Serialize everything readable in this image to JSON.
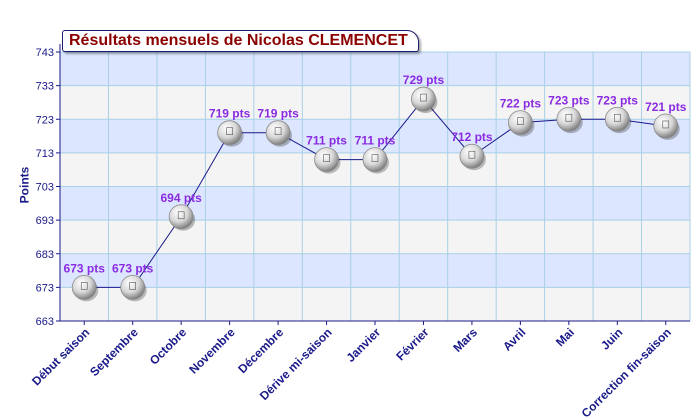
{
  "chart_data": {
    "type": "line",
    "title": "Résultats mensuels de Nicolas CLEMENCET",
    "xlabel": "",
    "ylabel": "Points",
    "categories": [
      "Début saison",
      "Septembre",
      "Octobre",
      "Novembre",
      "Décembre",
      "Dérive mi-saison",
      "Janvier",
      "Février",
      "Mars",
      "Avril",
      "Mai",
      "Juin",
      "Correction fin-saison"
    ],
    "series": [
      {
        "values": [
          673,
          673,
          694,
          719,
          719,
          711,
          711,
          729,
          712,
          722,
          723,
          723,
          721
        ]
      }
    ],
    "data_labels": [
      "673 pts",
      "673 pts",
      "694 pts",
      "719 pts",
      "719 pts",
      "711 pts",
      "711 pts",
      "729 pts",
      "712 pts",
      "722 pts",
      "723 pts",
      "723 pts",
      "721 pts"
    ],
    "ylim": [
      663,
      743
    ],
    "yticks": [
      663,
      673,
      683,
      693,
      703,
      713,
      723,
      733,
      743
    ],
    "grid": true,
    "legend": "none",
    "colors": {
      "band_light": "#f4f4f4",
      "band_blue": "#dce6ff",
      "grid": "#a8d0e6",
      "axis": "#1a1a8a",
      "line": "#1a1a8a",
      "data_label": "#8a2be2",
      "tick_label": "#1a1a8a",
      "title": "#8b0000"
    }
  }
}
